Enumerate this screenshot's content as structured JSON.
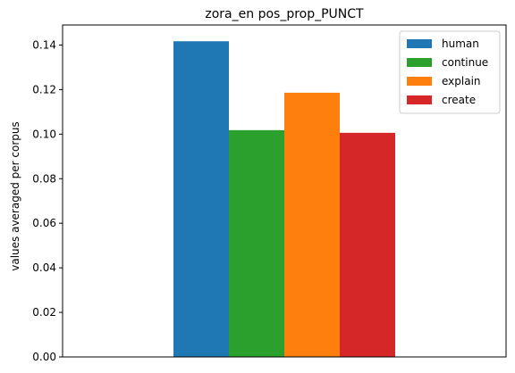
{
  "chart_data": {
    "type": "bar",
    "title": "zora_en pos_prop_PUNCT",
    "xlabel": "",
    "ylabel": "values averaged per corpus",
    "ylim": [
      0,
      0.149
    ],
    "yticks": [
      "0.00",
      "0.02",
      "0.04",
      "0.06",
      "0.08",
      "0.10",
      "0.12",
      "0.14"
    ],
    "ytick_values": [
      0,
      0.02,
      0.04,
      0.06,
      0.08,
      0.1,
      0.12,
      0.14
    ],
    "categories": [
      ""
    ],
    "grid": false,
    "legend_position": "top-right",
    "series": [
      {
        "name": "human",
        "color": "#1f77b4",
        "values": [
          0.1417
        ]
      },
      {
        "name": "continue",
        "color": "#2ca02c",
        "values": [
          0.1018
        ]
      },
      {
        "name": "explain",
        "color": "#ff7f0e",
        "values": [
          0.1186
        ]
      },
      {
        "name": "create",
        "color": "#d62728",
        "values": [
          0.1006
        ]
      }
    ]
  }
}
